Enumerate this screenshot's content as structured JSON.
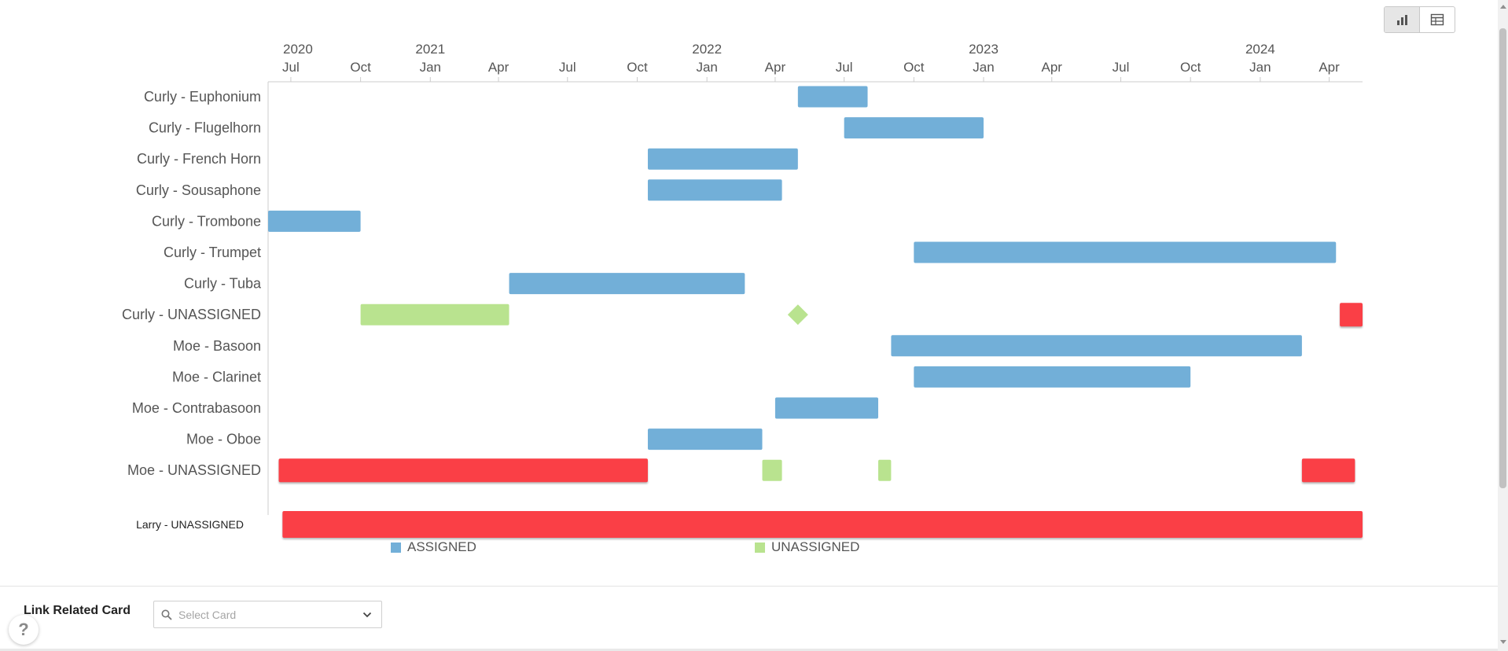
{
  "colors": {
    "assigned": "#72afd8",
    "unassigned": "#b9e38f",
    "overdue": "#fa3f46",
    "axis": "#cccccc",
    "text": "#555555"
  },
  "toolbar": {
    "chart_view_icon": "bar-chart-icon",
    "table_view_icon": "table-icon"
  },
  "chart_data": {
    "type": "gantt",
    "x_axis": {
      "min": "2020-06-01",
      "max": "2024-05-15",
      "year_labels": [
        {
          "date": "2020-06-01",
          "label": "2020"
        },
        {
          "date": "2021-01-01",
          "label": "2021"
        },
        {
          "date": "2022-01-01",
          "label": "2022"
        },
        {
          "date": "2023-01-01",
          "label": "2023"
        },
        {
          "date": "2024-01-01",
          "label": "2024"
        }
      ],
      "month_ticks": [
        {
          "date": "2020-07-01",
          "label": "Jul"
        },
        {
          "date": "2020-10-01",
          "label": "Oct"
        },
        {
          "date": "2021-01-01",
          "label": "Jan"
        },
        {
          "date": "2021-04-01",
          "label": "Apr"
        },
        {
          "date": "2021-07-01",
          "label": "Jul"
        },
        {
          "date": "2021-10-01",
          "label": "Oct"
        },
        {
          "date": "2022-01-01",
          "label": "Jan"
        },
        {
          "date": "2022-04-01",
          "label": "Apr"
        },
        {
          "date": "2022-07-01",
          "label": "Jul"
        },
        {
          "date": "2022-10-01",
          "label": "Oct"
        },
        {
          "date": "2023-01-01",
          "label": "Jan"
        },
        {
          "date": "2023-04-01",
          "label": "Apr"
        },
        {
          "date": "2023-07-01",
          "label": "Jul"
        },
        {
          "date": "2023-10-01",
          "label": "Oct"
        },
        {
          "date": "2024-01-01",
          "label": "Jan"
        },
        {
          "date": "2024-04-01",
          "label": "Apr"
        }
      ]
    },
    "rows": [
      {
        "label": "Curly - Euphonium",
        "tasks": [
          {
            "status": "ASSIGNED",
            "start": "2022-05-01",
            "end": "2022-08-01"
          }
        ]
      },
      {
        "label": "Curly - Flugelhorn",
        "tasks": [
          {
            "status": "ASSIGNED",
            "start": "2022-07-01",
            "end": "2023-01-01"
          }
        ]
      },
      {
        "label": "Curly - French Horn",
        "tasks": [
          {
            "status": "ASSIGNED",
            "start": "2021-10-15",
            "end": "2022-05-01"
          }
        ]
      },
      {
        "label": "Curly - Sousaphone",
        "tasks": [
          {
            "status": "ASSIGNED",
            "start": "2021-10-15",
            "end": "2022-04-10"
          }
        ]
      },
      {
        "label": "Curly - Trombone",
        "tasks": [
          {
            "status": "ASSIGNED",
            "start": "2020-06-01",
            "end": "2020-10-01"
          }
        ]
      },
      {
        "label": "Curly - Trumpet",
        "tasks": [
          {
            "status": "ASSIGNED",
            "start": "2022-10-01",
            "end": "2024-04-10"
          }
        ]
      },
      {
        "label": "Curly - Tuba",
        "tasks": [
          {
            "status": "ASSIGNED",
            "start": "2021-04-15",
            "end": "2022-02-20"
          }
        ]
      },
      {
        "label": "Curly - UNASSIGNED",
        "tasks": [
          {
            "status": "UNASSIGNED",
            "start": "2020-10-01",
            "end": "2021-04-15"
          },
          {
            "status": "UNASSIGNED",
            "milestone": true,
            "start": "2022-05-01",
            "end": "2022-05-01"
          },
          {
            "status": "OVERDUE",
            "start": "2024-04-15",
            "end": "2024-05-15"
          }
        ]
      },
      {
        "label": "Moe - Basoon",
        "tasks": [
          {
            "status": "ASSIGNED",
            "start": "2022-09-01",
            "end": "2024-02-25"
          }
        ]
      },
      {
        "label": "Moe - Clarinet",
        "tasks": [
          {
            "status": "ASSIGNED",
            "start": "2022-10-01",
            "end": "2023-10-01"
          }
        ]
      },
      {
        "label": "Moe - Contrabasoon",
        "tasks": [
          {
            "status": "ASSIGNED",
            "start": "2022-04-01",
            "end": "2022-08-15"
          }
        ]
      },
      {
        "label": "Moe - Oboe",
        "tasks": [
          {
            "status": "ASSIGNED",
            "start": "2021-10-15",
            "end": "2022-03-15"
          }
        ]
      },
      {
        "label": "Moe - UNASSIGNED",
        "tasks": [
          {
            "status": "OVERDUE",
            "start": "2020-06-15",
            "end": "2021-10-15"
          },
          {
            "status": "UNASSIGNED",
            "start": "2022-03-15",
            "end": "2022-04-10"
          },
          {
            "status": "UNASSIGNED",
            "start": "2022-08-15",
            "end": "2022-09-01"
          },
          {
            "status": "OVERDUE",
            "start": "2024-02-25",
            "end": "2024-05-05"
          }
        ]
      },
      {
        "label": "Larry - UNASSIGNED",
        "tasks": [
          {
            "status": "OVERDUE",
            "start": "2020-06-20",
            "end": "2024-05-15"
          }
        ]
      }
    ],
    "legend": [
      {
        "name": "ASSIGNED",
        "color": "#72afd8"
      },
      {
        "name": "UNASSIGNED",
        "color": "#b9e38f"
      }
    ],
    "legend_position": "bottom"
  },
  "footer": {
    "link_label": "Link Related Card",
    "select_placeholder": "Select Card",
    "search_icon": "search-icon",
    "dropdown_icon": "chevron-down-icon",
    "help_label": "?"
  }
}
